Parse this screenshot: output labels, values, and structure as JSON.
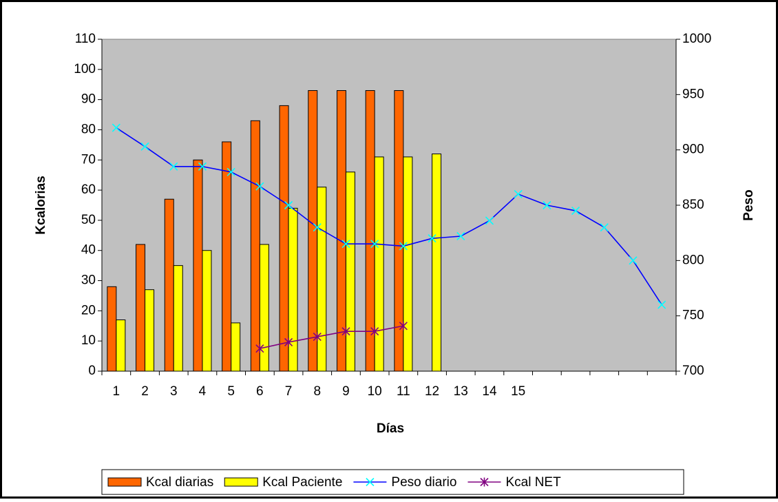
{
  "chart_data": {
    "type": "bar-line",
    "x_label": "Días",
    "y_label": "Kcalorias",
    "y2_label": "Peso",
    "categories": [
      "1",
      "2",
      "3",
      "4",
      "5",
      "6",
      "7",
      "8",
      "9",
      "10",
      "11",
      "12",
      "13",
      "14",
      "15",
      null,
      null,
      null,
      null,
      null
    ],
    "ylim": [
      0,
      110
    ],
    "yticks": [
      0,
      10,
      20,
      30,
      40,
      50,
      60,
      70,
      80,
      90,
      100,
      110
    ],
    "y2lim": [
      700,
      1000
    ],
    "y2ticks": [
      700,
      750,
      800,
      850,
      900,
      950,
      1000
    ],
    "plot_background": "#c0c0c0",
    "legend": "bottom",
    "series": [
      {
        "name": "Kcal diarias",
        "type": "bar",
        "color": "#ff6600",
        "values": [
          28,
          42,
          57,
          70,
          76,
          83,
          88,
          93,
          93,
          93,
          93,
          null,
          null,
          null,
          null,
          null,
          null,
          null,
          null,
          null
        ]
      },
      {
        "name": "Kcal Paciente",
        "type": "bar",
        "color": "#ffff00",
        "values": [
          17,
          27,
          35,
          40,
          16,
          42,
          54,
          61,
          66,
          71,
          71,
          72,
          null,
          null,
          null,
          null,
          null,
          null,
          null,
          null
        ]
      },
      {
        "name": "Peso diario",
        "type": "line",
        "color": "#0000ff",
        "marker": "x",
        "marker_color": "#00ffff",
        "axis": "y2",
        "values": [
          920,
          903,
          885,
          885,
          880,
          867,
          850,
          830,
          815,
          815,
          813,
          820,
          822,
          836,
          860,
          850,
          845,
          830,
          800,
          760
        ]
      },
      {
        "name": "Kcal NET",
        "type": "line",
        "color": "#800080",
        "marker": "star",
        "marker_color": "#800080",
        "values": [
          null,
          null,
          null,
          null,
          null,
          7.5,
          9.6,
          11.4,
          13.2,
          13.2,
          15,
          null,
          null,
          null,
          null,
          null,
          null,
          null,
          null,
          null
        ]
      }
    ]
  }
}
